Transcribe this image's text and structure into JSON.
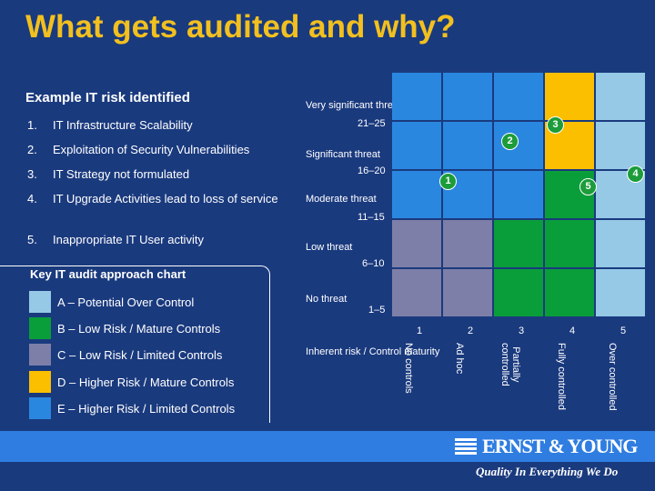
{
  "title": "What gets audited and why?",
  "risks": {
    "heading": "Example IT risk identified",
    "items": [
      {
        "num": "1.",
        "text": "IT Infrastructure Scalability"
      },
      {
        "num": "2.",
        "text": "Exploitation of Security Vulnerabilities"
      },
      {
        "num": "3.",
        "text": "IT Strategy not formulated"
      },
      {
        "num": "4.",
        "text": "IT Upgrade Activities lead to loss of service"
      },
      {
        "num": "5.",
        "text": "Inappropriate IT User activity"
      }
    ]
  },
  "legend": {
    "title": "Key IT audit approach chart",
    "items": [
      {
        "label": "A – Potential Over Control",
        "color": "#95c9e6"
      },
      {
        "label": "B – Low Risk / Mature Controls",
        "color": "#0a9e3a"
      },
      {
        "label": "C – Low Risk / Limited Controls",
        "color": "#7e7fa8"
      },
      {
        "label": "D – Higher Risk / Mature Controls",
        "color": "#fbbf00"
      },
      {
        "label": "E – Higher Risk / Limited Controls",
        "color": "#2a87e0"
      }
    ]
  },
  "chart_data": {
    "type": "heatmap",
    "xlabel": "Inherent risk / Control maturity",
    "x_numbers": [
      "1",
      "2",
      "3",
      "4",
      "5"
    ],
    "x_labels": [
      "No controls",
      "Ad hoc",
      "Partially controlled",
      "Fully controlled",
      "Over controlled"
    ],
    "y_labels": [
      {
        "label": "Very significant threat",
        "range": "21–25"
      },
      {
        "label": "Significant threat",
        "range": "16–20"
      },
      {
        "label": "Moderate threat",
        "range": "11–15"
      },
      {
        "label": "Low threat",
        "range": "6–10"
      },
      {
        "label": "No threat",
        "range": "1–5"
      }
    ],
    "grid": [
      [
        "E",
        "E",
        "E",
        "D",
        "A"
      ],
      [
        "E",
        "E",
        "E",
        "D",
        "A"
      ],
      [
        "E",
        "E",
        "E",
        "B",
        "A"
      ],
      [
        "C",
        "C",
        "B",
        "B",
        "A"
      ],
      [
        "C",
        "C",
        "B",
        "B",
        "A"
      ]
    ],
    "markers": [
      {
        "label": "1",
        "row": 2,
        "col": 1
      },
      {
        "label": "2",
        "row": 1,
        "col": 2
      },
      {
        "label": "3",
        "row": 1,
        "col": 3
      },
      {
        "label": "4",
        "row": 2,
        "col": 4
      },
      {
        "label": "5",
        "row": 2,
        "col": 3
      }
    ]
  },
  "footer": {
    "brand": "ERNST & YOUNG",
    "tagline": "Quality In Everything We Do"
  }
}
